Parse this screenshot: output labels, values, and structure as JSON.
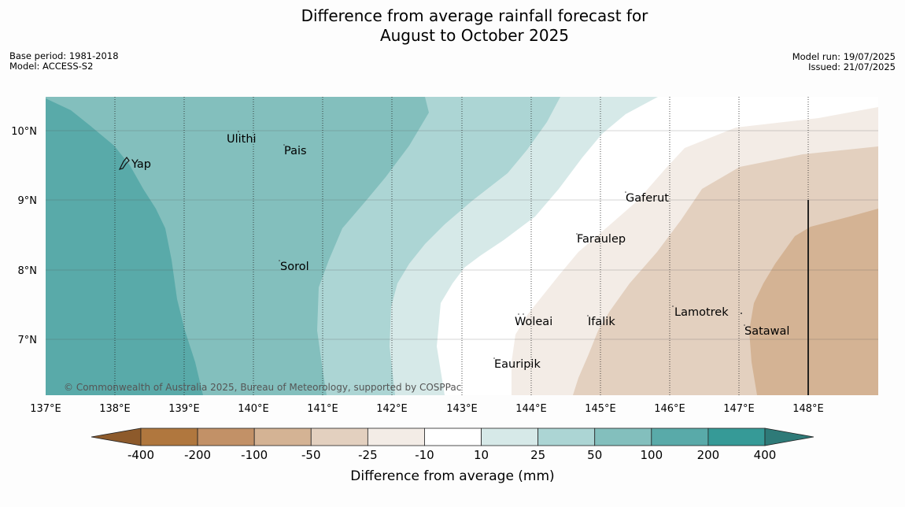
{
  "title": {
    "line1": "Difference from average rainfall forecast for",
    "line2": "August to October 2025"
  },
  "meta_left": {
    "base_period": "Base period: 1981-2018",
    "model": "Model: ACCESS-S2"
  },
  "meta_right": {
    "model_run": "Model run: 19/07/2025",
    "issued": "Issued: 21/07/2025"
  },
  "map": {
    "lon_labels": [
      "137°E",
      "138°E",
      "139°E",
      "140°E",
      "141°E",
      "142°E",
      "143°E",
      "144°E",
      "145°E",
      "146°E",
      "147°E",
      "148°E"
    ],
    "lat_labels": [
      "10°N",
      "9°N",
      "8°N",
      "7°N"
    ],
    "places": [
      "Ulithi",
      "Yap",
      "Pais",
      "Gaferut",
      "Faraulep",
      "Sorol",
      "Lamotrek",
      "Woleai",
      "Ifalik",
      "Satawal",
      "Eauripik"
    ],
    "copyright": "© Commonwealth of Australia 2025, Bureau of Meteorology, supported by COSPPac"
  },
  "legend": {
    "title": "Difference from average (mm)",
    "ticks": [
      "-400",
      "-200",
      "-100",
      "-50",
      "-25",
      "-10",
      "10",
      "25",
      "50",
      "100",
      "200",
      "400"
    ],
    "colors": [
      "#8d5a2b",
      "#b0773e",
      "#c29167",
      "#d4b394",
      "#e3d0bf",
      "#f3ece6",
      "#ffffff",
      "#d6e9e8",
      "#acd5d4",
      "#83bfbd",
      "#59aaa9",
      "#369a97",
      "#2e7a78"
    ]
  }
}
